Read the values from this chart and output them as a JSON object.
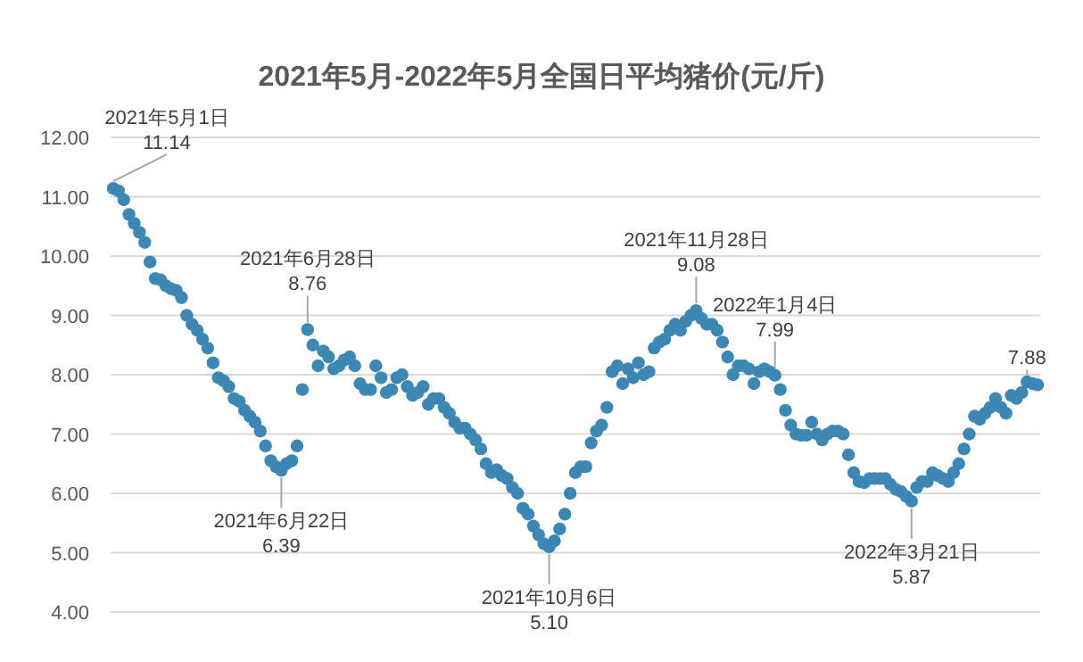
{
  "chart_data": {
    "type": "scatter",
    "title": "2021年5月-2022年5月全国日平均猪价(元/斤)",
    "categories": [
      null,
      null,
      null,
      null,
      null,
      null,
      null,
      null,
      null,
      null,
      null,
      null,
      null,
      null,
      null,
      null,
      null,
      null,
      null,
      null,
      null,
      null,
      null,
      null,
      null,
      null,
      null,
      null,
      null,
      null,
      null,
      null,
      null,
      null,
      null,
      null,
      null,
      null,
      null,
      null,
      null,
      null,
      null,
      null,
      null,
      null,
      null,
      null,
      null,
      null,
      null,
      null,
      null,
      null,
      null,
      null,
      null,
      null,
      null,
      null,
      null,
      null,
      null,
      null,
      null,
      null,
      null,
      null,
      null,
      null,
      null,
      null,
      null,
      null,
      null,
      null,
      null,
      null,
      null,
      null,
      null,
      null,
      null,
      null,
      null,
      null,
      null,
      null,
      null,
      null,
      null,
      null,
      null,
      null,
      null,
      null,
      null,
      null,
      null,
      null,
      null,
      null,
      null,
      null,
      null,
      null,
      null,
      null,
      null,
      null,
      null,
      null,
      null,
      null,
      null,
      null,
      null,
      null,
      null,
      null,
      null,
      null,
      null,
      null,
      null,
      null,
      null,
      null,
      null,
      null,
      null,
      null,
      null,
      null,
      null,
      null,
      null,
      null,
      null,
      null,
      null,
      null,
      null,
      null,
      null,
      null,
      null,
      null,
      null,
      null,
      null,
      null,
      null,
      null,
      null,
      null,
      null,
      null,
      null,
      null,
      null,
      null,
      null,
      null,
      null,
      null,
      null,
      null,
      null,
      null,
      null,
      null,
      null,
      null,
      null,
      null,
      null
    ],
    "series": [
      {
        "color": "#3d87b5",
        "values": [
          11.14,
          11.1,
          10.95,
          10.7,
          10.55,
          10.4,
          10.23,
          9.9,
          9.62,
          9.6,
          9.5,
          9.45,
          9.42,
          9.3,
          9.0,
          8.85,
          8.75,
          8.6,
          8.45,
          8.2,
          7.95,
          7.9,
          7.8,
          7.6,
          7.55,
          7.4,
          7.3,
          7.2,
          7.05,
          6.8,
          6.55,
          6.45,
          6.39,
          6.5,
          6.55,
          6.8,
          7.75,
          8.76,
          8.5,
          8.15,
          8.4,
          8.3,
          8.1,
          8.15,
          8.25,
          8.3,
          8.15,
          7.85,
          7.75,
          7.75,
          8.15,
          7.95,
          7.7,
          7.75,
          7.95,
          8.0,
          7.8,
          7.65,
          7.7,
          7.8,
          7.5,
          7.6,
          7.6,
          7.45,
          7.35,
          7.2,
          7.1,
          7.1,
          7.0,
          6.9,
          6.75,
          6.5,
          6.35,
          6.4,
          6.3,
          6.25,
          6.1,
          6.0,
          5.75,
          5.65,
          5.45,
          5.3,
          5.15,
          5.1,
          5.2,
          5.4,
          5.65,
          6.0,
          6.35,
          6.45,
          6.45,
          6.85,
          7.05,
          7.15,
          7.45,
          8.05,
          8.15,
          7.85,
          8.1,
          7.95,
          8.2,
          8.0,
          8.05,
          8.45,
          8.55,
          8.6,
          8.75,
          8.85,
          8.75,
          8.9,
          9.0,
          9.08,
          8.95,
          8.85,
          8.85,
          8.75,
          8.55,
          8.3,
          8.0,
          8.15,
          8.15,
          8.1,
          7.85,
          8.05,
          8.1,
          8.05,
          7.99,
          7.75,
          7.4,
          7.15,
          7.0,
          6.98,
          6.98,
          7.2,
          7.0,
          6.9,
          7.0,
          7.05,
          7.05,
          7.0,
          6.65,
          6.35,
          6.2,
          6.18,
          6.25,
          6.25,
          6.25,
          6.25,
          6.15,
          6.07,
          6.03,
          5.95,
          5.87,
          6.1,
          6.2,
          6.2,
          6.35,
          6.3,
          6.25,
          6.2,
          6.35,
          6.5,
          6.75,
          7.0,
          7.3,
          7.25,
          7.35,
          7.45,
          7.6,
          7.45,
          7.35,
          7.65,
          7.6,
          7.7,
          7.88,
          7.85,
          7.83
        ]
      }
    ],
    "ylim": [
      4,
      12
    ],
    "yticks": [
      {
        "value": 4,
        "label": "4.00"
      },
      {
        "value": 5,
        "label": "5.00"
      },
      {
        "value": 6,
        "label": "6.00"
      },
      {
        "value": 7,
        "label": "7.00"
      },
      {
        "value": 8,
        "label": "8.00"
      },
      {
        "value": 9,
        "label": "9.00"
      },
      {
        "value": 10,
        "label": "10.00"
      },
      {
        "value": 11,
        "label": "11.00"
      },
      {
        "value": 12,
        "label": "12.00"
      }
    ],
    "grid": "y",
    "marker": "circle",
    "annotations": [
      "2021年5月1日\n11.14",
      {
        "text": "2021年6月22日\n6.39",
        "y": 6.39
      },
      {
        "text": "2021年6月28日\n8.76",
        "y": 8.76
      },
      {
        "text": "2021年10月6日\n5.10",
        "y": 5.1
      },
      {
        "text": "2021年11月28日\n9.08",
        "y": 9.08
      },
      {
        "text": "2022年1月4日\n7.99",
        "y": 7.99
      },
      {
        "text": "2022年3月21日\n5.87",
        "y": 5.87
      },
      {
        "text": "7.88",
        "y": 7.88
      }
    ]
  }
}
